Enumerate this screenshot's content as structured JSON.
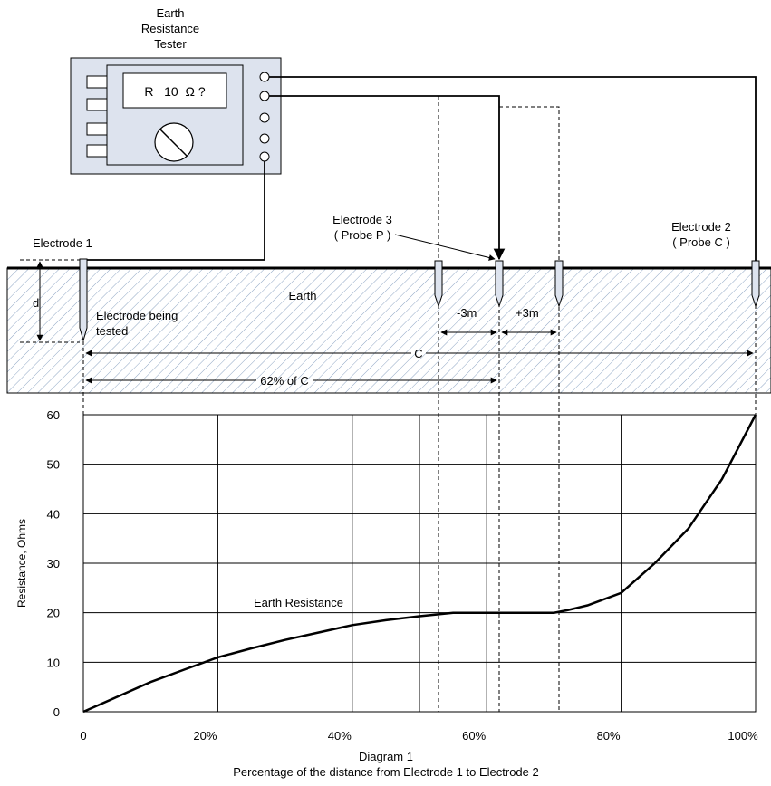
{
  "tester": {
    "title_lines": [
      "Earth",
      "Resistance",
      "Tester"
    ],
    "display": "R   10  Ω ?"
  },
  "labels": {
    "electrode1": "Electrode 1",
    "electrode3_lines": [
      "Electrode 3",
      "( Probe P )"
    ],
    "electrode2_lines": [
      "Electrode 2",
      "( Probe C )"
    ],
    "earth": "Earth",
    "tested_lines": [
      "Electrode being",
      "tested"
    ],
    "depth": "d",
    "minus3": "-3m",
    "plus3": "+3m",
    "c": "C",
    "pct62": "62% of C",
    "curve": "Earth Resistance"
  },
  "chart_data": {
    "type": "line",
    "ylabel": "Resistance, Ohms",
    "xlabel_lines": [
      "Diagram 1",
      "Percentage of the distance from Electrode 1 to Electrode 2"
    ],
    "x_ticks": [
      "0",
      "20%",
      "40%",
      "60%",
      "80%",
      "100%"
    ],
    "y_ticks": [
      "0",
      "10",
      "20",
      "30",
      "40",
      "50",
      "60"
    ],
    "xlim": [
      0,
      100
    ],
    "ylim": [
      0,
      60
    ],
    "series": [
      {
        "x": [
          0,
          5,
          10,
          15,
          20,
          25,
          30,
          35,
          40,
          45,
          50,
          55,
          60,
          65,
          70,
          72,
          75,
          80,
          85,
          90,
          95,
          100
        ],
        "y": [
          0,
          3,
          6,
          8.5,
          11,
          12.8,
          14.5,
          16,
          17.5,
          18.5,
          19.3,
          20,
          20,
          20,
          20,
          20.5,
          21.5,
          24,
          30,
          37,
          47,
          60
        ]
      }
    ]
  }
}
